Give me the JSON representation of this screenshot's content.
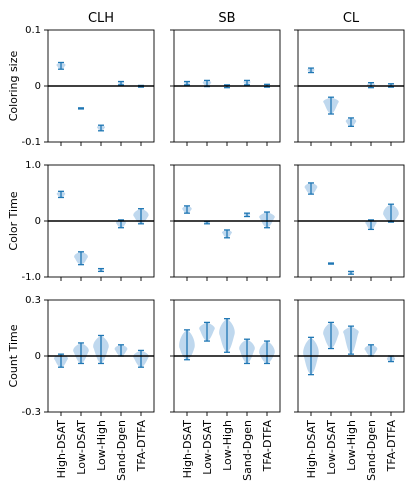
{
  "chart_data": {
    "type": "violin",
    "columns": [
      "CLH",
      "SB",
      "CL"
    ],
    "categories": [
      "High-DSAT",
      "Low-DSAT",
      "Low-High",
      "Sand-Dgen",
      "TFA-DTFA"
    ],
    "colors": {
      "body": "#a9cbe8",
      "line": "#1f77b4",
      "zero_line": "#000000"
    },
    "grid": false,
    "rows": [
      {
        "ylabel": "Coloring size",
        "ylim": [
          -0.1,
          0.1
        ],
        "ticks": [
          0.1,
          0,
          -0.1
        ],
        "tick_labels": [
          "0.1",
          "0",
          "-0.1"
        ],
        "panels": [
          [
            {
              "min": 0.03,
              "max": 0.042,
              "median": 0.036
            },
            {
              "min": -0.041,
              "max": -0.039,
              "median": -0.04
            },
            {
              "min": -0.08,
              "max": -0.07,
              "median": -0.075
            },
            {
              "min": 0.002,
              "max": 0.008,
              "median": 0.005
            },
            {
              "min": -0.002,
              "max": 0.001,
              "median": -0.001
            }
          ],
          [
            {
              "min": 0.002,
              "max": 0.008,
              "median": 0.005
            },
            {
              "min": -0.001,
              "max": 0.01,
              "median": 0.005
            },
            {
              "min": -0.003,
              "max": 0.002,
              "median": 0.0
            },
            {
              "min": 0.002,
              "max": 0.01,
              "median": 0.006
            },
            {
              "min": -0.002,
              "max": 0.003,
              "median": 0.0
            }
          ],
          [
            {
              "min": 0.024,
              "max": 0.032,
              "median": 0.028
            },
            {
              "min": -0.05,
              "max": -0.02,
              "median": -0.03
            },
            {
              "min": -0.072,
              "max": -0.057,
              "median": -0.065
            },
            {
              "min": -0.003,
              "max": 0.006,
              "median": 0.001
            },
            {
              "min": -0.002,
              "max": 0.004,
              "median": 0.002
            }
          ]
        ]
      },
      {
        "ylabel": "Color Time",
        "ylim": [
          -1.0,
          1.0
        ],
        "ticks": [
          1.0,
          0,
          -1.0
        ],
        "tick_labels": [
          "1.0",
          "0",
          "-1.0"
        ],
        "panels": [
          [
            {
              "min": 0.42,
              "max": 0.53,
              "median": 0.47
            },
            {
              "min": -0.78,
              "max": -0.55,
              "median": -0.66
            },
            {
              "min": -0.9,
              "max": -0.85,
              "median": -0.87
            },
            {
              "min": -0.12,
              "max": 0.02,
              "median": -0.05
            },
            {
              "min": -0.05,
              "max": 0.22,
              "median": 0.08
            }
          ],
          [
            {
              "min": 0.14,
              "max": 0.27,
              "median": 0.2
            },
            {
              "min": -0.05,
              "max": -0.01,
              "median": -0.03
            },
            {
              "min": -0.3,
              "max": -0.16,
              "median": -0.22
            },
            {
              "min": 0.08,
              "max": 0.14,
              "median": 0.11
            },
            {
              "min": -0.12,
              "max": 0.16,
              "median": 0.05
            }
          ],
          [
            {
              "min": 0.48,
              "max": 0.68,
              "median": 0.58
            },
            {
              "min": -0.77,
              "max": -0.75,
              "median": -0.76
            },
            {
              "min": -0.95,
              "max": -0.9,
              "median": -0.92
            },
            {
              "min": -0.15,
              "max": 0.02,
              "median": -0.05
            },
            {
              "min": -0.02,
              "max": 0.3,
              "median": 0.1
            }
          ]
        ]
      },
      {
        "ylabel": "Count Time",
        "ylim": [
          -0.3,
          0.3
        ],
        "ticks": [
          0.3,
          0,
          -0.3
        ],
        "tick_labels": [
          "0.3",
          "0",
          "-0.3"
        ],
        "panels": [
          [
            {
              "min": -0.06,
              "max": 0.01,
              "median": -0.02
            },
            {
              "min": -0.04,
              "max": 0.07,
              "median": 0.02
            },
            {
              "min": -0.04,
              "max": 0.11,
              "median": 0.04
            },
            {
              "min": 0.0,
              "max": 0.06,
              "median": 0.03
            },
            {
              "min": -0.06,
              "max": 0.03,
              "median": -0.01
            }
          ],
          [
            {
              "min": -0.02,
              "max": 0.14,
              "median": 0.04
            },
            {
              "min": 0.08,
              "max": 0.18,
              "median": 0.14
            },
            {
              "min": 0.02,
              "max": 0.2,
              "median": 0.11
            },
            {
              "min": -0.04,
              "max": 0.09,
              "median": 0.03
            },
            {
              "min": -0.04,
              "max": 0.08,
              "median": 0.01
            }
          ],
          [
            {
              "min": -0.1,
              "max": 0.1,
              "median": 0.0
            },
            {
              "min": 0.04,
              "max": 0.18,
              "median": 0.11
            },
            {
              "min": 0.01,
              "max": 0.16,
              "median": 0.12
            },
            {
              "min": 0.0,
              "max": 0.06,
              "median": 0.03
            },
            {
              "min": -0.03,
              "max": 0.0,
              "median": -0.02
            }
          ]
        ]
      }
    ]
  }
}
